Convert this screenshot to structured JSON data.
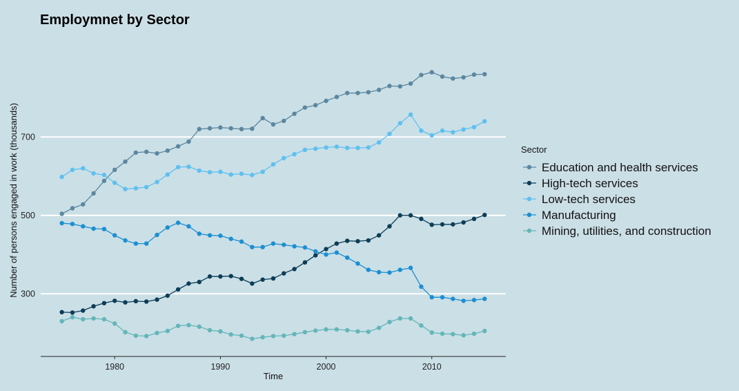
{
  "chart_data": {
    "type": "line",
    "title": "Employmnet by Sector",
    "xlabel": "Time",
    "ylabel": "Number of persons engaged in work (thousands)",
    "x": [
      1975,
      1976,
      1977,
      1978,
      1979,
      1980,
      1981,
      1982,
      1983,
      1984,
      1985,
      1986,
      1987,
      1988,
      1989,
      1990,
      1991,
      1992,
      1993,
      1994,
      1995,
      1996,
      1997,
      1998,
      1999,
      2000,
      2001,
      2002,
      2003,
      2004,
      2005,
      2006,
      2007,
      2008,
      2009,
      2010,
      2011,
      2012,
      2013,
      2014,
      2015
    ],
    "xlim": [
      1973,
      2017
    ],
    "ylim": [
      140,
      970
    ],
    "xticks": [
      1980,
      1990,
      2000,
      2010
    ],
    "yticks": [
      300,
      500,
      700
    ],
    "grid": "horizontal-major",
    "legend_position": "right",
    "legend_title": "Sector",
    "series": [
      {
        "name": "Education and health services",
        "color": "#5b87a0",
        "values": [
          504,
          518,
          528,
          556,
          588,
          616,
          637,
          660,
          662,
          658,
          665,
          676,
          688,
          720,
          722,
          724,
          722,
          720,
          721,
          748,
          732,
          741,
          759,
          775,
          781,
          792,
          802,
          812,
          812,
          814,
          820,
          830,
          829,
          836,
          858,
          865,
          854,
          849,
          852,
          859,
          860
        ]
      },
      {
        "name": "High-tech services",
        "color": "#0d3d56",
        "values": [
          253,
          252,
          257,
          268,
          276,
          282,
          278,
          281,
          280,
          285,
          295,
          311,
          326,
          330,
          344,
          344,
          345,
          338,
          326,
          336,
          339,
          352,
          363,
          380,
          398,
          414,
          428,
          435,
          434,
          436,
          449,
          472,
          500,
          500,
          491,
          476,
          477,
          477,
          482,
          491,
          501
        ]
      },
      {
        "name": "Low-tech services",
        "color": "#5ec0f0",
        "values": [
          598,
          616,
          620,
          607,
          603,
          583,
          567,
          569,
          572,
          585,
          604,
          623,
          624,
          614,
          610,
          611,
          604,
          606,
          603,
          611,
          630,
          646,
          656,
          667,
          670,
          673,
          675,
          672,
          672,
          673,
          686,
          708,
          735,
          757,
          716,
          704,
          716,
          712,
          719,
          725,
          740
        ]
      },
      {
        "name": "Manufacturing",
        "color": "#1b8fd2",
        "values": [
          480,
          478,
          472,
          466,
          465,
          449,
          436,
          428,
          428,
          450,
          469,
          481,
          472,
          453,
          449,
          448,
          440,
          433,
          419,
          419,
          428,
          425,
          421,
          418,
          408,
          400,
          405,
          392,
          377,
          361,
          355,
          354,
          361,
          366,
          318,
          291,
          291,
          287,
          282,
          284,
          287
        ]
      },
      {
        "name": "Mining, utilities, and construction",
        "color": "#63b6b9",
        "values": [
          230,
          240,
          235,
          237,
          235,
          224,
          202,
          193,
          192,
          200,
          205,
          218,
          220,
          216,
          207,
          204,
          196,
          193,
          185,
          189,
          192,
          193,
          197,
          202,
          206,
          209,
          209,
          207,
          204,
          203,
          213,
          228,
          237,
          237,
          219,
          201,
          198,
          197,
          194,
          198,
          205
        ]
      }
    ]
  }
}
